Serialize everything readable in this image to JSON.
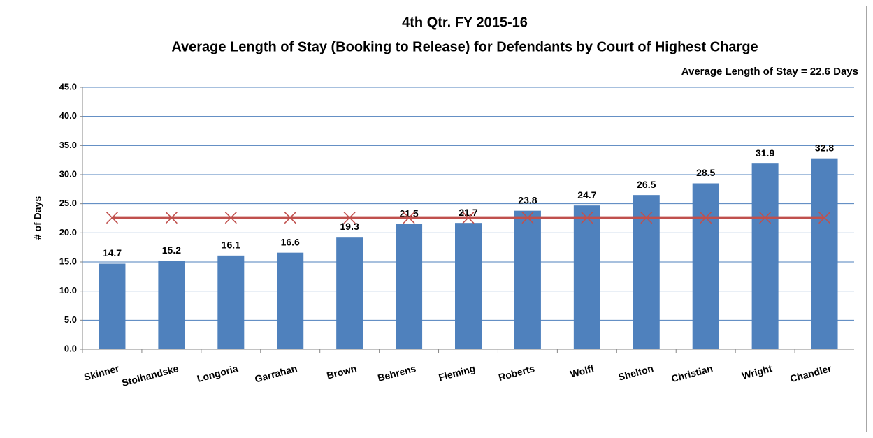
{
  "chart_data": {
    "type": "bar",
    "title": "4th Qtr. FY 2015-16",
    "subtitle": "Average Length of Stay (Booking to Release) for Defendants by Court of Highest Charge",
    "annotation": "Average Length of Stay = 22.6 Days",
    "ylabel": "# of Days",
    "categories": [
      "Skinner",
      "Stolhandske",
      "Longoria",
      "Garrahan",
      "Brown",
      "Behrens",
      "Fleming",
      "Roberts",
      "Wolff",
      "Shelton",
      "Christian",
      "Wright",
      "Chandler"
    ],
    "series": [
      {
        "type": "bar",
        "color": "#4f81bd",
        "values": [
          14.7,
          15.2,
          16.1,
          16.6,
          19.3,
          21.5,
          21.7,
          23.8,
          24.7,
          26.5,
          28.5,
          31.9,
          32.8
        ]
      },
      {
        "type": "line",
        "color": "#c0504d",
        "values": [
          22.6,
          22.6,
          22.6,
          22.6,
          22.6,
          22.6,
          22.6,
          22.6,
          22.6,
          22.6,
          22.6,
          22.6,
          22.6
        ]
      }
    ],
    "ylim": [
      0,
      45
    ],
    "yticks": [
      {
        "value": 0,
        "label": "0.0"
      },
      {
        "value": 5,
        "label": "5.0"
      },
      {
        "value": 10,
        "label": "10.0"
      },
      {
        "value": 15,
        "label": "15.0"
      },
      {
        "value": 20,
        "label": "20.0"
      },
      {
        "value": 25,
        "label": "25.0"
      },
      {
        "value": 30,
        "label": "30.0"
      },
      {
        "value": 35,
        "label": "35.0"
      },
      {
        "value": 40,
        "label": "40.0"
      },
      {
        "value": 45,
        "label": "45.0"
      }
    ],
    "grid": true
  }
}
